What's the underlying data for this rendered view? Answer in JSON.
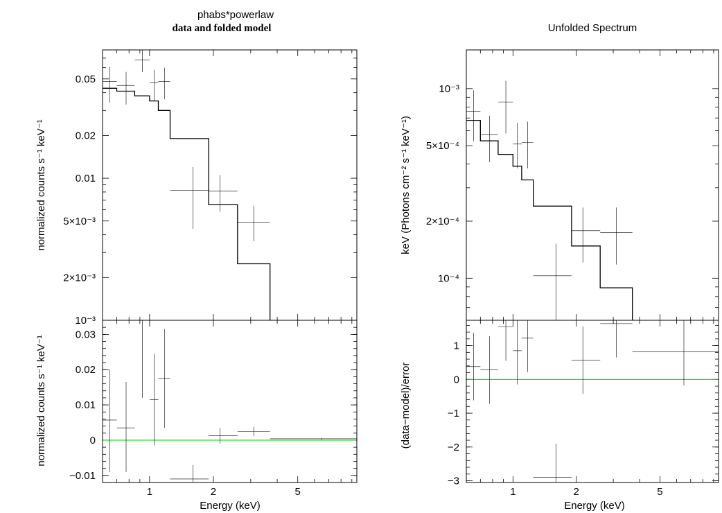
{
  "chart_data": [
    {
      "type": "scatter",
      "title": "phabs*powerlaw",
      "subtitle": "data and folded model",
      "panel": "top-left",
      "xscale": "log",
      "yscale": "log",
      "xlim": [
        0.6,
        9.5
      ],
      "ylim": [
        0.001,
        0.08
      ],
      "ylabel": "normalized counts s⁻¹ keV⁻¹",
      "y_ticks": [
        {
          "value": 0.05,
          "label": "0.05"
        },
        {
          "value": 0.02,
          "label": "0.02"
        },
        {
          "value": 0.01,
          "label": "0.01"
        },
        {
          "value": 0.005,
          "label": "5×10⁻³"
        },
        {
          "value": 0.002,
          "label": "2×10⁻³"
        },
        {
          "value": 0.001,
          "label": "10⁻³"
        }
      ],
      "data": [
        {
          "x": 0.65,
          "xlo": 0.6,
          "xhi": 0.7,
          "y": 0.048,
          "ylo": 0.034,
          "yhi": 0.061
        },
        {
          "x": 0.775,
          "xlo": 0.7,
          "xhi": 0.85,
          "y": 0.045,
          "ylo": 0.033,
          "yhi": 0.056
        },
        {
          "x": 0.925,
          "xlo": 0.85,
          "xhi": 1.0,
          "y": 0.068,
          "ylo": 0.056,
          "yhi": 0.08
        },
        {
          "x": 1.05,
          "xlo": 1.0,
          "xhi": 1.1,
          "y": 0.047,
          "ylo": 0.035,
          "yhi": 0.058
        },
        {
          "x": 1.175,
          "xlo": 1.1,
          "xhi": 1.25,
          "y": 0.048,
          "ylo": 0.036,
          "yhi": 0.06
        },
        {
          "x": 1.6,
          "xlo": 1.25,
          "xhi": 1.9,
          "y": 0.0082,
          "ylo": 0.0044,
          "yhi": 0.012
        },
        {
          "x": 2.15,
          "xlo": 1.9,
          "xhi": 2.6,
          "y": 0.0081,
          "ylo": 0.0058,
          "yhi": 0.0105
        },
        {
          "x": 3.1,
          "xlo": 2.6,
          "xhi": 3.7,
          "y": 0.0049,
          "ylo": 0.0036,
          "yhi": 0.0064
        }
      ],
      "model": [
        {
          "xlo": 0.6,
          "xhi": 0.7,
          "y": 0.043
        },
        {
          "xlo": 0.7,
          "xhi": 0.85,
          "y": 0.041
        },
        {
          "xlo": 0.85,
          "xhi": 1.0,
          "y": 0.038
        },
        {
          "xlo": 1.0,
          "xhi": 1.1,
          "y": 0.035
        },
        {
          "xlo": 1.1,
          "xhi": 1.25,
          "y": 0.03
        },
        {
          "xlo": 1.25,
          "xhi": 1.9,
          "y": 0.019
        },
        {
          "xlo": 1.9,
          "xhi": 2.6,
          "y": 0.0065
        },
        {
          "xlo": 2.6,
          "xhi": 3.7,
          "y": 0.0025
        }
      ]
    },
    {
      "type": "scatter",
      "panel": "bottom-left",
      "xscale": "log",
      "yscale": "linear",
      "xlim": [
        0.6,
        9.5
      ],
      "ylim": [
        -0.012,
        0.034
      ],
      "xlabel": "Energy (keV)",
      "ylabel": "normalized counts s⁻¹ keV⁻¹",
      "x_ticks": [
        {
          "value": 1,
          "label": "1"
        },
        {
          "value": 2,
          "label": "2"
        },
        {
          "value": 5,
          "label": "5"
        }
      ],
      "y_ticks": [
        {
          "value": 0.03,
          "label": "0.03"
        },
        {
          "value": 0.02,
          "label": "0.02"
        },
        {
          "value": 0.01,
          "label": "0.01"
        },
        {
          "value": 0,
          "label": "0"
        },
        {
          "value": -0.01,
          "label": "−0.01"
        }
      ],
      "zero_line": 0,
      "data": [
        {
          "x": 0.65,
          "xlo": 0.6,
          "xhi": 0.7,
          "y": 0.0057,
          "ylo": -0.009,
          "yhi": 0.02
        },
        {
          "x": 0.775,
          "xlo": 0.7,
          "xhi": 0.85,
          "y": 0.0035,
          "ylo": -0.009,
          "yhi": 0.0165
        },
        {
          "x": 0.925,
          "xlo": 0.85,
          "xhi": 1.0,
          "y": 0.034,
          "ylo": 0.012,
          "yhi": 0.034
        },
        {
          "x": 1.05,
          "xlo": 1.0,
          "xhi": 1.1,
          "y": 0.0115,
          "ylo": -0.0015,
          "yhi": 0.0245
        },
        {
          "x": 1.175,
          "xlo": 1.1,
          "xhi": 1.25,
          "y": 0.0175,
          "ylo": 0.0035,
          "yhi": 0.0315
        },
        {
          "x": 1.6,
          "xlo": 1.25,
          "xhi": 1.9,
          "y": -0.011,
          "ylo": -0.012,
          "yhi": -0.007
        },
        {
          "x": 2.15,
          "xlo": 1.9,
          "xhi": 2.6,
          "y": 0.0013,
          "ylo": -0.001,
          "yhi": 0.0035
        },
        {
          "x": 3.1,
          "xlo": 2.6,
          "xhi": 3.7,
          "y": 0.0024,
          "ylo": 0.0011,
          "yhi": 0.0038
        },
        {
          "x": 6.5,
          "xlo": 3.7,
          "xhi": 9.5,
          "y": 0.0004,
          "ylo": 0.0002,
          "yhi": 0.0006
        }
      ]
    },
    {
      "type": "scatter",
      "title": "Unfolded Spectrum",
      "panel": "top-right",
      "xscale": "log",
      "yscale": "log",
      "xlim": [
        0.6,
        9.5
      ],
      "ylim": [
        6e-05,
        0.0016
      ],
      "ylabel": "keV (Photons cm⁻² s⁻¹ keV⁻¹)",
      "y_ticks": [
        {
          "value": 0.001,
          "label": "10⁻³"
        },
        {
          "value": 0.0005,
          "label": "5×10⁻⁴"
        },
        {
          "value": 0.0002,
          "label": "2×10⁻⁴"
        },
        {
          "value": 0.0001,
          "label": "10⁻⁴"
        }
      ],
      "data": [
        {
          "x": 0.65,
          "xlo": 0.6,
          "xhi": 0.7,
          "y": 0.00076,
          "ylo": 0.00053,
          "yhi": 0.00098
        },
        {
          "x": 0.775,
          "xlo": 0.7,
          "xhi": 0.85,
          "y": 0.00057,
          "ylo": 0.00041,
          "yhi": 0.00072
        },
        {
          "x": 0.925,
          "xlo": 0.85,
          "xhi": 1.0,
          "y": 0.00085,
          "ylo": 0.00058,
          "yhi": 0.0011
        },
        {
          "x": 1.05,
          "xlo": 1.0,
          "xhi": 1.1,
          "y": 0.00051,
          "ylo": 0.00038,
          "yhi": 0.00066
        },
        {
          "x": 1.175,
          "xlo": 1.1,
          "xhi": 1.25,
          "y": 0.00052,
          "ylo": 0.00038,
          "yhi": 0.00067
        },
        {
          "x": 1.6,
          "xlo": 1.25,
          "xhi": 1.9,
          "y": 0.000103,
          "ylo": 6e-05,
          "yhi": 0.000152
        },
        {
          "x": 2.15,
          "xlo": 1.9,
          "xhi": 2.6,
          "y": 0.000178,
          "ylo": 0.000121,
          "yhi": 0.000236
        },
        {
          "x": 3.1,
          "xlo": 2.6,
          "xhi": 3.7,
          "y": 0.000174,
          "ylo": 0.000118,
          "yhi": 0.000236
        }
      ],
      "model": [
        {
          "xlo": 0.6,
          "xhi": 0.7,
          "y": 0.00068
        },
        {
          "xlo": 0.7,
          "xhi": 0.85,
          "y": 0.00053
        },
        {
          "xlo": 0.85,
          "xhi": 1.0,
          "y": 0.00045
        },
        {
          "xlo": 1.0,
          "xhi": 1.1,
          "y": 0.00039
        },
        {
          "xlo": 1.1,
          "xhi": 1.25,
          "y": 0.00033
        },
        {
          "xlo": 1.25,
          "xhi": 1.9,
          "y": 0.00024
        },
        {
          "xlo": 1.9,
          "xhi": 2.6,
          "y": 0.000148
        },
        {
          "xlo": 2.6,
          "xhi": 3.7,
          "y": 8.9e-05
        }
      ]
    },
    {
      "type": "scatter",
      "panel": "bottom-right",
      "xscale": "log",
      "yscale": "linear",
      "xlim": [
        0.6,
        9.5
      ],
      "ylim": [
        -3.05,
        1.75
      ],
      "xlabel": "Energy (keV)",
      "ylabel": "(data−model)/error",
      "x_ticks": [
        {
          "value": 1,
          "label": "1"
        },
        {
          "value": 2,
          "label": "2"
        },
        {
          "value": 5,
          "label": "5"
        }
      ],
      "y_ticks": [
        {
          "value": 1,
          "label": "1"
        },
        {
          "value": 0,
          "label": "0"
        },
        {
          "value": -1,
          "label": "−1"
        },
        {
          "value": -2,
          "label": "−2"
        },
        {
          "value": -3,
          "label": "−3"
        }
      ],
      "zero_line": 0,
      "data": [
        {
          "x": 0.65,
          "xlo": 0.6,
          "xhi": 0.7,
          "y": 0.38,
          "ylo": -0.62,
          "yhi": 1.38
        },
        {
          "x": 0.775,
          "xlo": 0.7,
          "xhi": 0.85,
          "y": 0.28,
          "ylo": -0.72,
          "yhi": 1.28
        },
        {
          "x": 0.925,
          "xlo": 0.85,
          "xhi": 1.0,
          "y": 1.55,
          "ylo": 0.55,
          "yhi": 1.75
        },
        {
          "x": 1.05,
          "xlo": 1.0,
          "xhi": 1.1,
          "y": 0.85,
          "ylo": -0.15,
          "yhi": 1.75
        },
        {
          "x": 1.175,
          "xlo": 1.1,
          "xhi": 1.25,
          "y": 1.22,
          "ylo": 0.22,
          "yhi": 1.75
        },
        {
          "x": 1.6,
          "xlo": 1.25,
          "xhi": 1.9,
          "y": -2.9,
          "ylo": -3.05,
          "yhi": -1.9
        },
        {
          "x": 2.15,
          "xlo": 1.9,
          "xhi": 2.6,
          "y": 0.57,
          "ylo": -0.43,
          "yhi": 1.57
        },
        {
          "x": 3.1,
          "xlo": 2.6,
          "xhi": 3.7,
          "y": 1.65,
          "ylo": 0.65,
          "yhi": 1.75
        },
        {
          "x": 6.5,
          "xlo": 3.7,
          "xhi": 9.5,
          "y": 0.82,
          "ylo": -0.18,
          "yhi": 1.75
        }
      ]
    }
  ],
  "colors": {
    "zero_line": "#00e000",
    "axes": "#000000"
  }
}
